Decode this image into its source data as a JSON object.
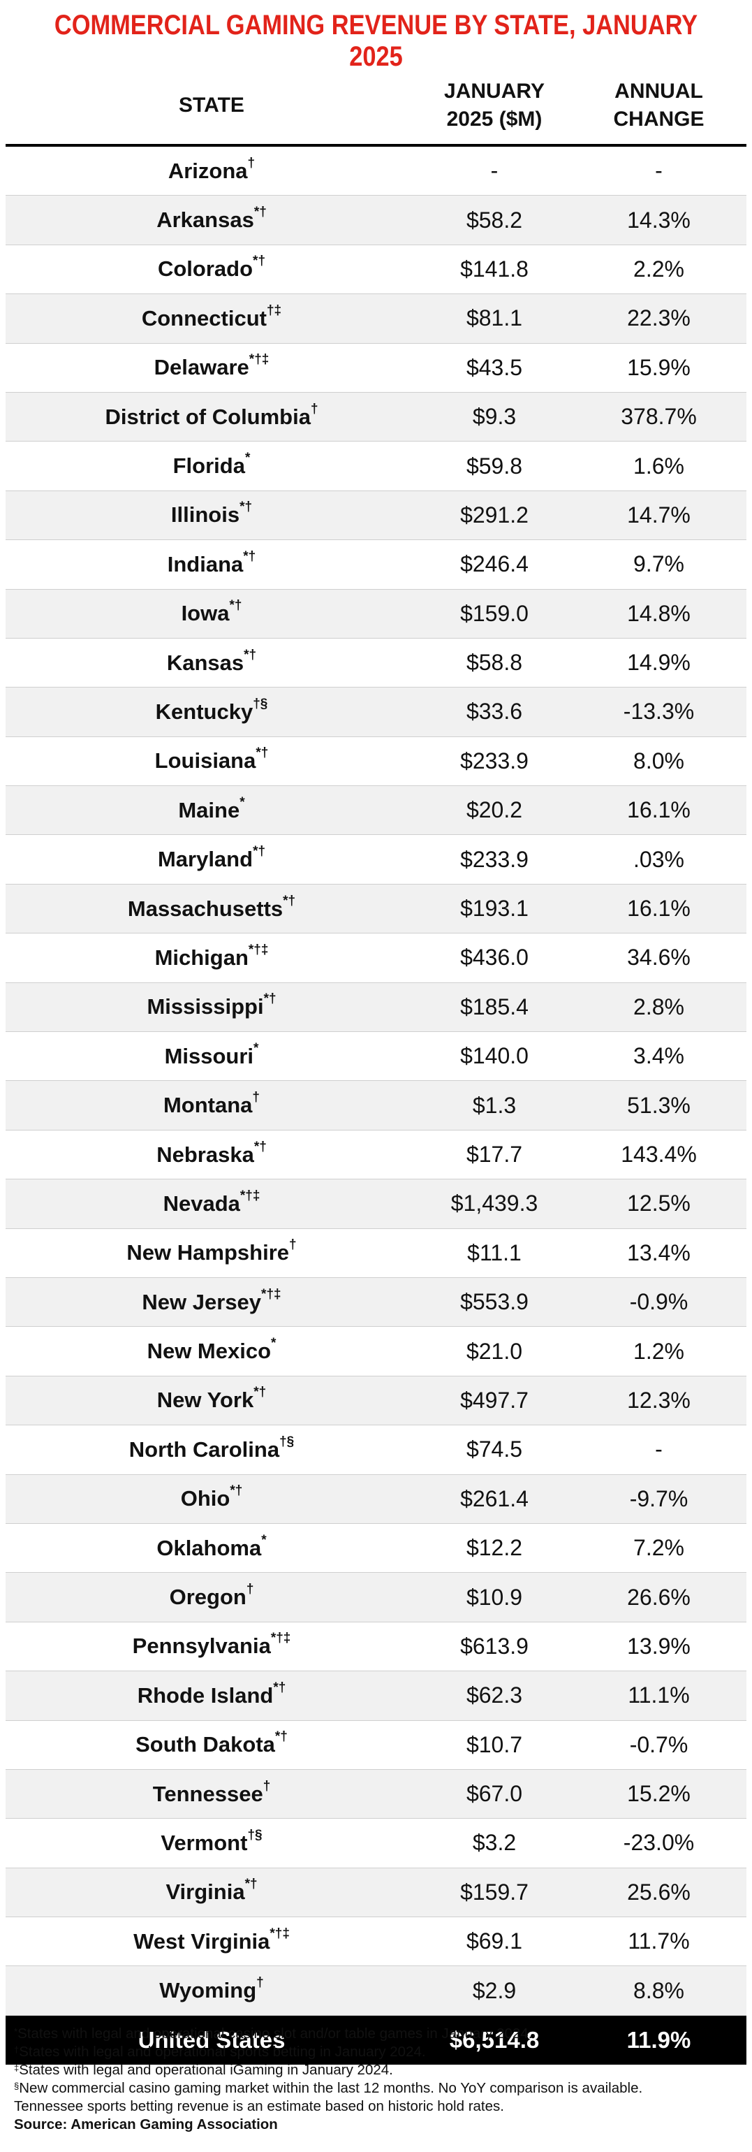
{
  "title": "COMMERCIAL GAMING REVENUE BY STATE, JANUARY 2025",
  "headers": {
    "state": "STATE",
    "revenue_line1": "JANUARY",
    "revenue_line2": "2025 ($M)",
    "change": "ANNUAL CHANGE"
  },
  "rows": [
    {
      "state": "Arizona",
      "marks": "†",
      "revenue": "-",
      "change": "-"
    },
    {
      "state": "Arkansas",
      "marks": "*†",
      "revenue": "$58.2",
      "change": "14.3%"
    },
    {
      "state": "Colorado",
      "marks": "*†",
      "revenue": "$141.8",
      "change": "2.2%"
    },
    {
      "state": "Connecticut",
      "marks": "†‡",
      "revenue": "$81.1",
      "change": "22.3%"
    },
    {
      "state": "Delaware",
      "marks": "*†‡",
      "revenue": "$43.5",
      "change": "15.9%"
    },
    {
      "state": "District of Columbia",
      "marks": "†",
      "revenue": "$9.3",
      "change": "378.7%"
    },
    {
      "state": "Florida",
      "marks": "*",
      "revenue": "$59.8",
      "change": "1.6%"
    },
    {
      "state": "Illinois",
      "marks": "*†",
      "revenue": "$291.2",
      "change": "14.7%"
    },
    {
      "state": "Indiana",
      "marks": "*†",
      "revenue": "$246.4",
      "change": "9.7%"
    },
    {
      "state": "Iowa",
      "marks": "*†",
      "revenue": "$159.0",
      "change": "14.8%"
    },
    {
      "state": "Kansas",
      "marks": "*†",
      "revenue": "$58.8",
      "change": "14.9%"
    },
    {
      "state": "Kentucky",
      "marks": "†§",
      "revenue": "$33.6",
      "change": "-13.3%"
    },
    {
      "state": "Louisiana",
      "marks": "*†",
      "revenue": "$233.9",
      "change": "8.0%"
    },
    {
      "state": "Maine",
      "marks": "*",
      "revenue": "$20.2",
      "change": "16.1%"
    },
    {
      "state": "Maryland",
      "marks": "*†",
      "revenue": "$233.9",
      "change": ".03%"
    },
    {
      "state": "Massachusetts",
      "marks": "*†",
      "revenue": "$193.1",
      "change": "16.1%"
    },
    {
      "state": "Michigan",
      "marks": "*†‡",
      "revenue": "$436.0",
      "change": "34.6%"
    },
    {
      "state": "Mississippi",
      "marks": "*†",
      "revenue": "$185.4",
      "change": "2.8%"
    },
    {
      "state": "Missouri",
      "marks": "*",
      "revenue": "$140.0",
      "change": "3.4%"
    },
    {
      "state": "Montana",
      "marks": "†",
      "revenue": "$1.3",
      "change": "51.3%"
    },
    {
      "state": "Nebraska",
      "marks": "*†",
      "revenue": "$17.7",
      "change": "143.4%"
    },
    {
      "state": "Nevada",
      "marks": "*†‡",
      "revenue": "$1,439.3",
      "change": "12.5%"
    },
    {
      "state": "New Hampshire",
      "marks": "†",
      "revenue": "$11.1",
      "change": "13.4%"
    },
    {
      "state": "New Jersey",
      "marks": "*†‡",
      "revenue": "$553.9",
      "change": "-0.9%"
    },
    {
      "state": "New Mexico",
      "marks": "*",
      "revenue": "$21.0",
      "change": "1.2%"
    },
    {
      "state": "New York",
      "marks": "*†",
      "revenue": "$497.7",
      "change": "12.3%"
    },
    {
      "state": "North Carolina",
      "marks": "†§",
      "revenue": "$74.5",
      "change": "-"
    },
    {
      "state": "Ohio",
      "marks": "*†",
      "revenue": "$261.4",
      "change": "-9.7%"
    },
    {
      "state": "Oklahoma",
      "marks": "*",
      "revenue": "$12.2",
      "change": "7.2%"
    },
    {
      "state": "Oregon",
      "marks": "†",
      "revenue": "$10.9",
      "change": "26.6%"
    },
    {
      "state": "Pennsylvania",
      "marks": "*†‡",
      "revenue": "$613.9",
      "change": "13.9%"
    },
    {
      "state": "Rhode Island",
      "marks": "*†",
      "revenue": "$62.3",
      "change": "11.1%"
    },
    {
      "state": "South Dakota",
      "marks": "*†",
      "revenue": "$10.7",
      "change": "-0.7%"
    },
    {
      "state": "Tennessee",
      "marks": "†",
      "revenue": "$67.0",
      "change": "15.2%"
    },
    {
      "state": "Vermont",
      "marks": "†§",
      "revenue": "$3.2",
      "change": "-23.0%"
    },
    {
      "state": "Virginia",
      "marks": "*†",
      "revenue": "$159.7",
      "change": "25.6%"
    },
    {
      "state": "West Virginia",
      "marks": "*†‡",
      "revenue": "$69.1",
      "change": "11.7%"
    },
    {
      "state": "Wyoming",
      "marks": "†",
      "revenue": "$2.9",
      "change": "8.8%"
    }
  ],
  "total": {
    "state": "United States",
    "revenue": "$6,514.8",
    "change": "11.9%"
  },
  "notes": [
    {
      "mark": "*",
      "text": "States with legal and operational casino slot and/or table games in January 2024."
    },
    {
      "mark": "†",
      "text": "States with legal and operational sports betting in January 2024."
    },
    {
      "mark": "‡",
      "text": "States with legal and operational iGaming in January 2024."
    },
    {
      "mark": "§",
      "text": "New commercial casino gaming market within the last 12 months. No YoY comparison is available."
    }
  ],
  "extra_note": "Tennessee sports betting revenue is an estimate based on historic hold rates.",
  "source": "Source: American Gaming Association",
  "colors": {
    "title": "#e2231a",
    "total_bg": "#000000",
    "stripe": "#f1f1f1"
  }
}
